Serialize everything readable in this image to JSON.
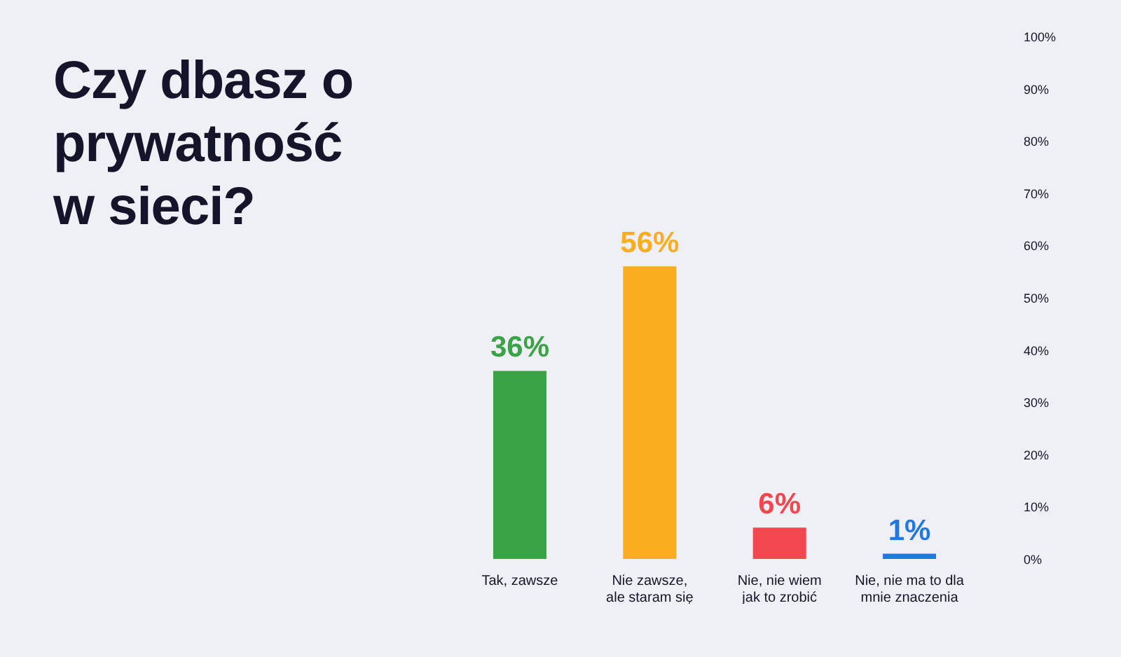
{
  "chart_data": {
    "type": "bar",
    "title": "Czy dbasz o prywatność w sieci?",
    "categories": [
      "Tak, zawsze",
      "Nie zawsze,\nale staram się",
      "Nie, nie wiem\njak to zrobić",
      "Nie, nie ma to dla\nmnie znaczenia"
    ],
    "values": [
      36,
      56,
      6,
      1
    ],
    "colors": [
      "#3aa346",
      "#f9ad1f",
      "#f2474f",
      "#2278e0"
    ],
    "value_labels": [
      "36%",
      "56%",
      "6%",
      "1%"
    ],
    "ylim": [
      0,
      100
    ],
    "yticks": [
      {
        "value": 0,
        "label": "0%"
      },
      {
        "value": 10,
        "label": "10%"
      },
      {
        "value": 20,
        "label": "20%"
      },
      {
        "value": 30,
        "label": "30%"
      },
      {
        "value": 40,
        "label": "40%"
      },
      {
        "value": 50,
        "label": "50%"
      },
      {
        "value": 60,
        "label": "60%"
      },
      {
        "value": 70,
        "label": "70%"
      },
      {
        "value": 80,
        "label": "80%"
      },
      {
        "value": 90,
        "label": "90%"
      },
      {
        "value": 100,
        "label": "100%"
      }
    ],
    "grid": false,
    "legend": false
  }
}
